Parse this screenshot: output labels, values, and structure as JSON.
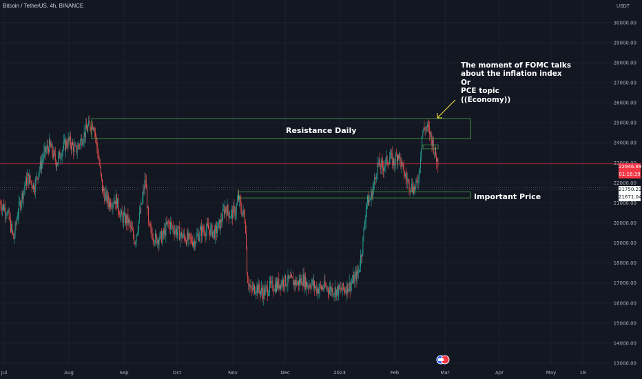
{
  "header": {
    "title": "Bitcoin / TetherUS, 4h, BINANCE",
    "currency": "USDT"
  },
  "annotations": {
    "fomc": [
      "The moment of FOMC talks",
      "about the inflation index",
      "Or",
      "PCE topic",
      "((Economy))"
    ],
    "resistance": "Resistance Daily",
    "important": "Important Price"
  },
  "price_tags": {
    "current": "22946.89",
    "countdown": "01:16:39",
    "level_a": "21750.23",
    "level_b": "21671.04"
  },
  "colors": {
    "background": "#131722",
    "up": "#26a69a",
    "down": "#ef5350",
    "zone": "#4caf50",
    "arrow": "#ffeb3b",
    "current_line": "#f23645"
  },
  "chart_data": {
    "type": "candlestick",
    "title": "Bitcoin / TetherUS, 4h, BINANCE",
    "yunit": "USDT",
    "ylim": [
      12700,
      31000
    ],
    "y_ticks": [
      13000,
      14000,
      15000,
      16000,
      17000,
      18000,
      19000,
      20000,
      21000,
      22000,
      23000,
      24000,
      25000,
      26000,
      27000,
      28000,
      29000,
      30000
    ],
    "y_tick_labels": [
      "13000.00",
      "14000.00",
      "15000.00",
      "16000.00",
      "17000.00",
      "18000.00",
      "19000.00",
      "20000.00",
      "21000.00",
      "22000.00",
      "23000.00",
      "24000.00",
      "25000.00",
      "26000.00",
      "27000.00",
      "28000.00",
      "29000.00",
      "30000.00"
    ],
    "x_ticks": [
      "Jul",
      "Aug",
      "Sep",
      "Oct",
      "Nov",
      "Dec",
      "2023",
      "Feb",
      "Mar",
      "Apr",
      "May",
      "18"
    ],
    "price_path": [
      [
        0,
        21000
      ],
      [
        10,
        20600
      ],
      [
        20,
        19200
      ],
      [
        25,
        20400
      ],
      [
        33,
        21500
      ],
      [
        40,
        22300
      ],
      [
        50,
        21800
      ],
      [
        56,
        22600
      ],
      [
        65,
        23500
      ],
      [
        72,
        23900
      ],
      [
        82,
        23000
      ],
      [
        92,
        23800
      ],
      [
        100,
        24100
      ],
      [
        110,
        23600
      ],
      [
        120,
        24300
      ],
      [
        128,
        24800
      ],
      [
        136,
        25000
      ],
      [
        142,
        23500
      ],
      [
        149,
        21600
      ],
      [
        158,
        21000
      ],
      [
        168,
        21200
      ],
      [
        176,
        20300
      ],
      [
        186,
        20100
      ],
      [
        196,
        19100
      ],
      [
        205,
        20800
      ],
      [
        211,
        22200
      ],
      [
        216,
        19700
      ],
      [
        226,
        19200
      ],
      [
        236,
        19300
      ],
      [
        244,
        20000
      ],
      [
        253,
        19700
      ],
      [
        262,
        19400
      ],
      [
        272,
        19200
      ],
      [
        282,
        19100
      ],
      [
        292,
        19600
      ],
      [
        302,
        19700
      ],
      [
        312,
        19500
      ],
      [
        320,
        20000
      ],
      [
        327,
        20800
      ],
      [
        334,
        20400
      ],
      [
        342,
        20600
      ],
      [
        346,
        21300
      ],
      [
        350,
        20700
      ],
      [
        356,
        20200
      ],
      [
        359,
        17300
      ],
      [
        364,
        16600
      ],
      [
        372,
        16800
      ],
      [
        382,
        16500
      ],
      [
        392,
        16800
      ],
      [
        402,
        16900
      ],
      [
        412,
        17100
      ],
      [
        422,
        17100
      ],
      [
        432,
        17000
      ],
      [
        440,
        17200
      ],
      [
        446,
        16900
      ],
      [
        452,
        17000
      ],
      [
        460,
        16700
      ],
      [
        470,
        16800
      ],
      [
        480,
        16700
      ],
      [
        490,
        16600
      ],
      [
        500,
        16700
      ],
      [
        508,
        16900
      ],
      [
        514,
        17200
      ],
      [
        520,
        17500
      ],
      [
        526,
        18800
      ],
      [
        532,
        21000
      ],
      [
        538,
        21200
      ],
      [
        543,
        22000
      ],
      [
        548,
        22900
      ],
      [
        556,
        22800
      ],
      [
        566,
        23300
      ],
      [
        572,
        23000
      ],
      [
        578,
        23500
      ],
      [
        585,
        22600
      ],
      [
        593,
        22000
      ],
      [
        598,
        21800
      ],
      [
        603,
        21700
      ],
      [
        608,
        22400
      ],
      [
        613,
        24500
      ],
      [
        618,
        24800
      ],
      [
        623,
        24600
      ],
      [
        628,
        24000
      ],
      [
        632,
        23400
      ],
      [
        636,
        23000
      ]
    ],
    "zones": [
      {
        "label": "Resistance Daily",
        "x_start": "Aug",
        "x_end": "Mar",
        "y_low": 24200,
        "y_high": 25200
      },
      {
        "label": "Important Price",
        "x_start": "Nov",
        "x_end": "Mar",
        "y_low": 21250,
        "y_high": 21550
      }
    ],
    "current_price": 22946.89,
    "levels": [
      21750.23,
      21671.04
    ]
  }
}
